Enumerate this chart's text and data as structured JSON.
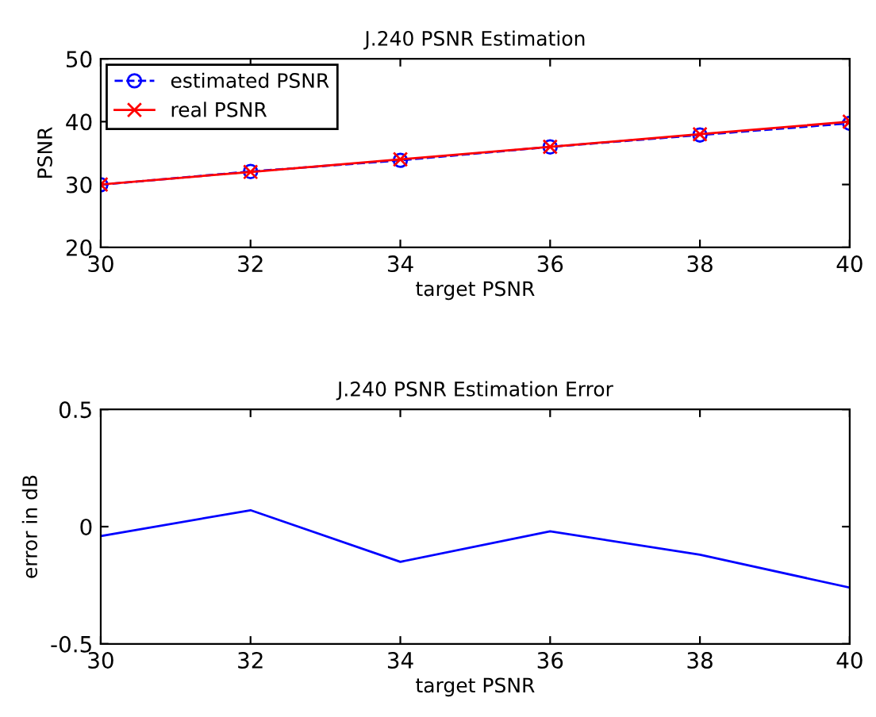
{
  "chart_data": [
    {
      "type": "line",
      "title": "J.240 PSNR Estimation",
      "xlabel": "target PSNR",
      "ylabel": "PSNR",
      "x": [
        30,
        32,
        34,
        36,
        38,
        40
      ],
      "series": [
        {
          "name": "estimated PSNR",
          "color": "#0000ff",
          "values": [
            29.96,
            32.07,
            33.85,
            35.98,
            37.88,
            39.74
          ],
          "marker": "circle",
          "line_style": "dashed"
        },
        {
          "name": "real PSNR",
          "color": "#ff0000",
          "values": [
            30,
            32,
            34,
            36,
            38,
            40
          ],
          "marker": "cross",
          "line_style": "solid"
        }
      ],
      "xlim": [
        30,
        40
      ],
      "xticks": [
        30,
        32,
        34,
        36,
        38,
        40
      ],
      "ylim": [
        20,
        50
      ],
      "yticks": [
        20,
        30,
        40,
        50
      ],
      "grid": false,
      "legend": "top left"
    },
    {
      "type": "line",
      "title": "J.240 PSNR Estimation Error",
      "xlabel": "target PSNR",
      "ylabel": "error in dB",
      "x": [
        30,
        32,
        34,
        36,
        38,
        40
      ],
      "series": [
        {
          "color": "#0000ff",
          "values": [
            -0.04,
            0.07,
            -0.15,
            -0.02,
            -0.12,
            -0.26
          ]
        }
      ],
      "xlim": [
        30,
        40
      ],
      "xticks": [
        30,
        32,
        34,
        36,
        38,
        40
      ],
      "ylim": [
        -0.5,
        0.5
      ],
      "yticks": [
        -0.5,
        0,
        0.5
      ],
      "grid": false,
      "legend": false
    }
  ]
}
